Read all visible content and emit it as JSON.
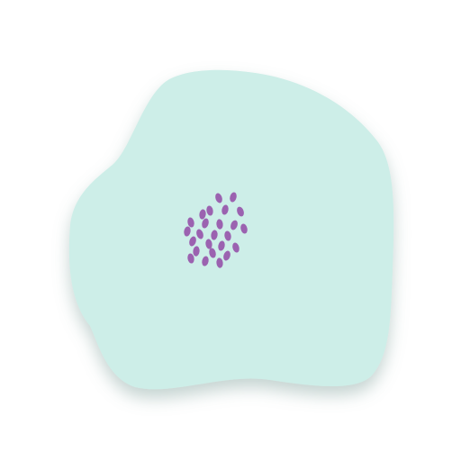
{
  "colors": {
    "background": "#ffffff",
    "blob_fill": "#cdeee8",
    "blob_shadow": "#8aa8a3",
    "dot_fill": "#9b62b0"
  },
  "blob": {
    "icon": "blob-shape"
  },
  "dots": {
    "icon": "seed-cluster",
    "count": 25
  }
}
